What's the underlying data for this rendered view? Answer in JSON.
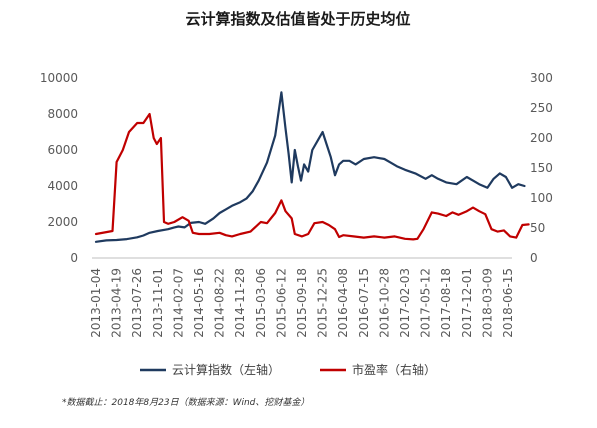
{
  "chart_data": {
    "type": "line",
    "title": "云计算指数及估值皆处于历史均位",
    "x_categories": [
      "2013-01-04",
      "2013-04-19",
      "2013-07-26",
      "2013-11-01",
      "2014-02-07",
      "2014-05-16",
      "2014-08-22",
      "2014-11-28",
      "2015-03-06",
      "2015-06-12",
      "2015-09-18",
      "2015-12-25",
      "2016-04-08",
      "2016-07-15",
      "2016-10-28",
      "2017-02-03",
      "2017-05-12",
      "2017-08-18",
      "2017-12-01",
      "2018-03-09",
      "2018-06-15"
    ],
    "y_left": {
      "range": [
        0,
        10000
      ],
      "ticks": [
        "0",
        "2000",
        "4000",
        "6000",
        "8000",
        "10000"
      ]
    },
    "y_right": {
      "range": [
        0,
        300
      ],
      "ticks": [
        "0",
        "50",
        "100",
        "150",
        "200",
        "250",
        "300"
      ]
    },
    "grid": false,
    "legend_position": "bottom",
    "series": [
      {
        "name": "云计算指数（左轴）",
        "axis": "left",
        "color": "#1f3a5f",
        "points": [
          [
            0,
            900
          ],
          [
            0.5,
            980
          ],
          [
            1,
            1000
          ],
          [
            1.5,
            1050
          ],
          [
            2,
            1150
          ],
          [
            2.3,
            1250
          ],
          [
            2.6,
            1400
          ],
          [
            3,
            1500
          ],
          [
            3.5,
            1600
          ],
          [
            3.8,
            1700
          ],
          [
            4,
            1750
          ],
          [
            4.3,
            1700
          ],
          [
            4.6,
            1950
          ],
          [
            5,
            2000
          ],
          [
            5.3,
            1900
          ],
          [
            5.7,
            2200
          ],
          [
            6,
            2500
          ],
          [
            6.3,
            2700
          ],
          [
            6.6,
            2900
          ],
          [
            7,
            3100
          ],
          [
            7.3,
            3300
          ],
          [
            7.6,
            3700
          ],
          [
            7.9,
            4300
          ],
          [
            8.3,
            5300
          ],
          [
            8.7,
            6800
          ],
          [
            9.0,
            9200
          ],
          [
            9.2,
            7200
          ],
          [
            9.35,
            5800
          ],
          [
            9.5,
            4200
          ],
          [
            9.65,
            6000
          ],
          [
            9.8,
            5100
          ],
          [
            9.95,
            4300
          ],
          [
            10.1,
            5200
          ],
          [
            10.3,
            4800
          ],
          [
            10.5,
            6000
          ],
          [
            10.8,
            6600
          ],
          [
            11.0,
            7000
          ],
          [
            11.2,
            6300
          ],
          [
            11.4,
            5600
          ],
          [
            11.6,
            4600
          ],
          [
            11.8,
            5200
          ],
          [
            12.0,
            5400
          ],
          [
            12.3,
            5400
          ],
          [
            12.6,
            5200
          ],
          [
            13.0,
            5500
          ],
          [
            13.5,
            5600
          ],
          [
            14.0,
            5500
          ],
          [
            14.3,
            5300
          ],
          [
            14.6,
            5100
          ],
          [
            15.0,
            4900
          ],
          [
            15.5,
            4700
          ],
          [
            16.0,
            4400
          ],
          [
            16.3,
            4600
          ],
          [
            16.6,
            4400
          ],
          [
            17.0,
            4200
          ],
          [
            17.5,
            4100
          ],
          [
            18.0,
            4500
          ],
          [
            18.3,
            4300
          ],
          [
            18.6,
            4100
          ],
          [
            19.0,
            3900
          ],
          [
            19.3,
            4400
          ],
          [
            19.6,
            4700
          ],
          [
            19.9,
            4500
          ],
          [
            20.2,
            3900
          ],
          [
            20.5,
            4100
          ],
          [
            20.8,
            4000
          ]
        ]
      },
      {
        "name": "市盈率（右轴）",
        "axis": "right",
        "color": "#c00000",
        "points": [
          [
            0,
            40
          ],
          [
            0.8,
            45
          ],
          [
            1.0,
            160
          ],
          [
            1.3,
            180
          ],
          [
            1.6,
            210
          ],
          [
            2.0,
            225
          ],
          [
            2.3,
            225
          ],
          [
            2.6,
            240
          ],
          [
            2.8,
            200
          ],
          [
            2.95,
            190
          ],
          [
            3.15,
            200
          ],
          [
            3.3,
            60
          ],
          [
            3.5,
            57
          ],
          [
            3.8,
            60
          ],
          [
            4.2,
            68
          ],
          [
            4.5,
            62
          ],
          [
            4.7,
            42
          ],
          [
            5,
            40
          ],
          [
            5.5,
            40
          ],
          [
            6,
            42
          ],
          [
            6.3,
            38
          ],
          [
            6.6,
            36
          ],
          [
            7,
            40
          ],
          [
            7.5,
            44
          ],
          [
            8.0,
            60
          ],
          [
            8.3,
            58
          ],
          [
            8.7,
            75
          ],
          [
            9.0,
            96
          ],
          [
            9.2,
            78
          ],
          [
            9.5,
            66
          ],
          [
            9.65,
            40
          ],
          [
            10.0,
            36
          ],
          [
            10.3,
            40
          ],
          [
            10.6,
            58
          ],
          [
            11.0,
            60
          ],
          [
            11.3,
            55
          ],
          [
            11.6,
            48
          ],
          [
            11.8,
            35
          ],
          [
            12.0,
            38
          ],
          [
            12.5,
            36
          ],
          [
            13.0,
            34
          ],
          [
            13.5,
            36
          ],
          [
            14.0,
            34
          ],
          [
            14.5,
            36
          ],
          [
            15.0,
            32
          ],
          [
            15.4,
            31
          ],
          [
            15.6,
            32
          ],
          [
            15.9,
            48
          ],
          [
            16.3,
            76
          ],
          [
            16.6,
            74
          ],
          [
            17.0,
            70
          ],
          [
            17.3,
            76
          ],
          [
            17.6,
            72
          ],
          [
            18.0,
            78
          ],
          [
            18.3,
            84
          ],
          [
            18.6,
            78
          ],
          [
            18.9,
            73
          ],
          [
            19.2,
            48
          ],
          [
            19.5,
            44
          ],
          [
            19.8,
            46
          ],
          [
            20.1,
            36
          ],
          [
            20.4,
            34
          ],
          [
            20.7,
            55
          ],
          [
            21.0,
            56
          ]
        ]
      }
    ],
    "legend": [
      {
        "label": "云计算指数（左轴）",
        "color": "#1f3a5f"
      },
      {
        "label": "市盈率（右轴）",
        "color": "#c00000"
      }
    ],
    "footnote": "*数据截止：2018年8月23日（数据来源：Wind、挖财基金）"
  }
}
